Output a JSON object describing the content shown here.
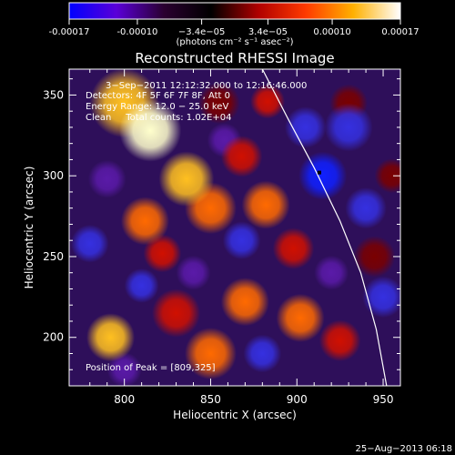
{
  "colorbar": {
    "ticks": [
      "-0.00017",
      "-0.00010",
      "−3.4e−05",
      "3.4e−05",
      "0.00010",
      "0.00017"
    ],
    "tick_values": [
      -0.00017,
      -0.0001,
      -3.4e-05,
      3.4e-05,
      0.0001,
      0.00017
    ],
    "unit_label": "(photons cm⁻² s⁻¹ asec⁻²)",
    "colors": [
      "#0000ff",
      "#5a00d8",
      "#2a0030",
      "#000000",
      "#b00000",
      "#ff3a00",
      "#ffb000",
      "#ffffff"
    ]
  },
  "chart_data": {
    "type": "heatmap",
    "title": "Reconstructed RHESSI Image",
    "xlabel": "Heliocentric X (arcsec)",
    "ylabel": "Heliocentric Y (arcsec)",
    "xlim": [
      768,
      960
    ],
    "ylim": [
      170,
      366
    ],
    "x_ticks": [
      800,
      850,
      900,
      950
    ],
    "y_ticks": [
      200,
      250,
      300,
      350
    ],
    "annotations": [
      "3−Sep−2011 12:12:32.000 to 12:16:46.000",
      "Detectors: 4F 5F 6F 7F 8F, Att 0",
      "Energy Range: 12.0 − 25.0 keV",
      "Clean     Total counts: 1.02E+04"
    ],
    "peak_label": "Position of Peak = [809,325]",
    "peak": [
      809,
      325
    ],
    "peak_marker": [
      913,
      302
    ],
    "limb": [
      [
        880,
        366
      ],
      [
        895,
        335
      ],
      [
        910,
        305
      ],
      [
        925,
        272
      ],
      [
        937,
        240
      ],
      [
        946,
        205
      ],
      [
        952,
        170
      ]
    ],
    "blobs": [
      {
        "x": 815,
        "y": 328,
        "v": 1.0,
        "r": 18
      },
      {
        "x": 800,
        "y": 345,
        "v": 0.75,
        "r": 20
      },
      {
        "x": 836,
        "y": 298,
        "v": 0.75,
        "r": 16
      },
      {
        "x": 850,
        "y": 280,
        "v": 0.6,
        "r": 15
      },
      {
        "x": 812,
        "y": 272,
        "v": 0.55,
        "r": 14
      },
      {
        "x": 882,
        "y": 282,
        "v": 0.65,
        "r": 14
      },
      {
        "x": 868,
        "y": 312,
        "v": 0.45,
        "r": 12
      },
      {
        "x": 855,
        "y": 345,
        "v": 0.3,
        "r": 12
      },
      {
        "x": 883,
        "y": 346,
        "v": 0.35,
        "r": 10
      },
      {
        "x": 792,
        "y": 200,
        "v": 0.75,
        "r": 14
      },
      {
        "x": 830,
        "y": 215,
        "v": 0.4,
        "r": 14
      },
      {
        "x": 850,
        "y": 190,
        "v": 0.55,
        "r": 15
      },
      {
        "x": 870,
        "y": 222,
        "v": 0.55,
        "r": 14
      },
      {
        "x": 902,
        "y": 212,
        "v": 0.55,
        "r": 14
      },
      {
        "x": 925,
        "y": 198,
        "v": 0.35,
        "r": 12
      },
      {
        "x": 898,
        "y": 255,
        "v": 0.4,
        "r": 12
      },
      {
        "x": 822,
        "y": 252,
        "v": 0.35,
        "r": 11
      },
      {
        "x": 945,
        "y": 250,
        "v": 0.3,
        "r": 12
      },
      {
        "x": 955,
        "y": 300,
        "v": 0.25,
        "r": 10
      },
      {
        "x": 930,
        "y": 345,
        "v": 0.2,
        "r": 11
      },
      {
        "x": 915,
        "y": 300,
        "v": -0.75,
        "r": 14
      },
      {
        "x": 930,
        "y": 330,
        "v": -0.5,
        "r": 14
      },
      {
        "x": 940,
        "y": 280,
        "v": -0.45,
        "r": 12
      },
      {
        "x": 905,
        "y": 330,
        "v": -0.45,
        "r": 12
      },
      {
        "x": 780,
        "y": 258,
        "v": -0.45,
        "r": 11
      },
      {
        "x": 810,
        "y": 232,
        "v": -0.35,
        "r": 10
      },
      {
        "x": 868,
        "y": 260,
        "v": -0.35,
        "r": 11
      },
      {
        "x": 858,
        "y": 322,
        "v": -0.3,
        "r": 10
      },
      {
        "x": 790,
        "y": 298,
        "v": -0.3,
        "r": 11
      },
      {
        "x": 840,
        "y": 240,
        "v": -0.3,
        "r": 10
      },
      {
        "x": 880,
        "y": 190,
        "v": -0.35,
        "r": 11
      },
      {
        "x": 950,
        "y": 225,
        "v": -0.35,
        "r": 12
      },
      {
        "x": 800,
        "y": 180,
        "v": -0.25,
        "r": 10
      },
      {
        "x": 920,
        "y": 240,
        "v": -0.3,
        "r": 10
      }
    ]
  },
  "footer_date": "25−Aug−2013 06:18"
}
